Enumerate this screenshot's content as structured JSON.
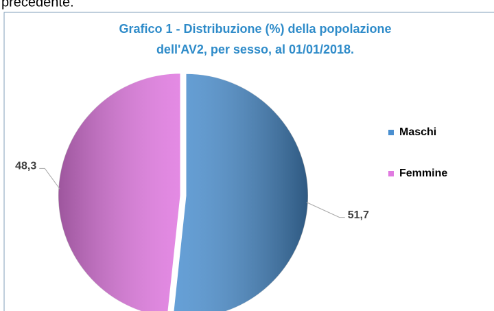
{
  "document": {
    "text_above": "precedente."
  },
  "chart_data": {
    "type": "pie",
    "title": [
      "Grafico 1 - Distribuzione (%) della popolazione",
      "dell'AV2, per sesso, al 01/01/2018."
    ],
    "categories": [
      "Maschi",
      "Femmine"
    ],
    "values": [
      51.7,
      48.3
    ],
    "value_labels": [
      "51,7",
      "48,3"
    ],
    "colors": [
      "#4a8fd0",
      "#e07ae0"
    ],
    "legend": "right"
  }
}
